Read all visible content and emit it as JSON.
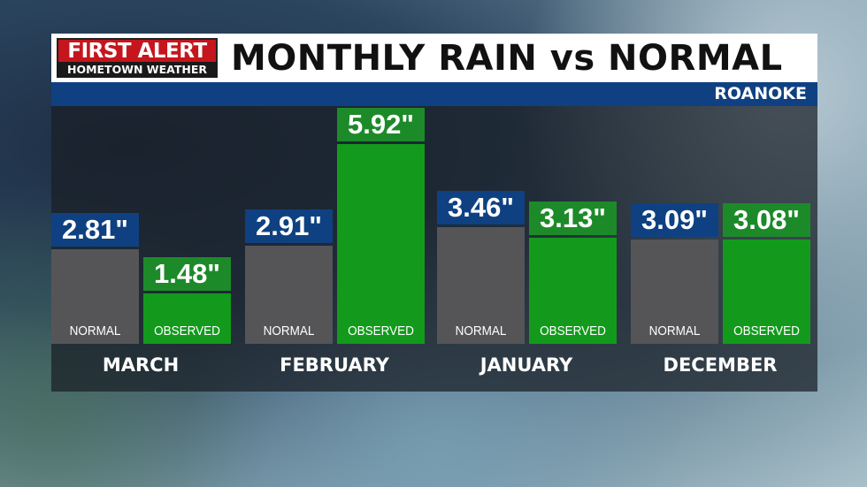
{
  "logo": {
    "line1": "FIRST ALERT",
    "line2": "HOMETOWN WEATHER"
  },
  "title": "MONTHLY RAIN vs NORMAL",
  "location": "ROANOKE",
  "colors": {
    "normal_bar": "#555557",
    "normal_label": "#0f4182",
    "observed_bar": "#139a1c",
    "observed_label": "#1d8a2a",
    "band": "#0f4182",
    "logo_red": "#c4161c"
  },
  "chart_data": {
    "type": "bar",
    "categories": [
      "MARCH",
      "FEBRUARY",
      "JANUARY",
      "DECEMBER"
    ],
    "series": [
      {
        "name": "NORMAL",
        "values": [
          2.81,
          2.91,
          3.46,
          3.09
        ],
        "labels": [
          "2.81\"",
          "2.91\"",
          "3.46\"",
          "3.09\""
        ]
      },
      {
        "name": "OBSERVED",
        "values": [
          1.48,
          5.92,
          3.13,
          3.08
        ],
        "labels": [
          "1.48\"",
          "5.92\"",
          "3.13\"",
          "3.08\""
        ]
      }
    ],
    "unit": "inches",
    "grid": false
  }
}
